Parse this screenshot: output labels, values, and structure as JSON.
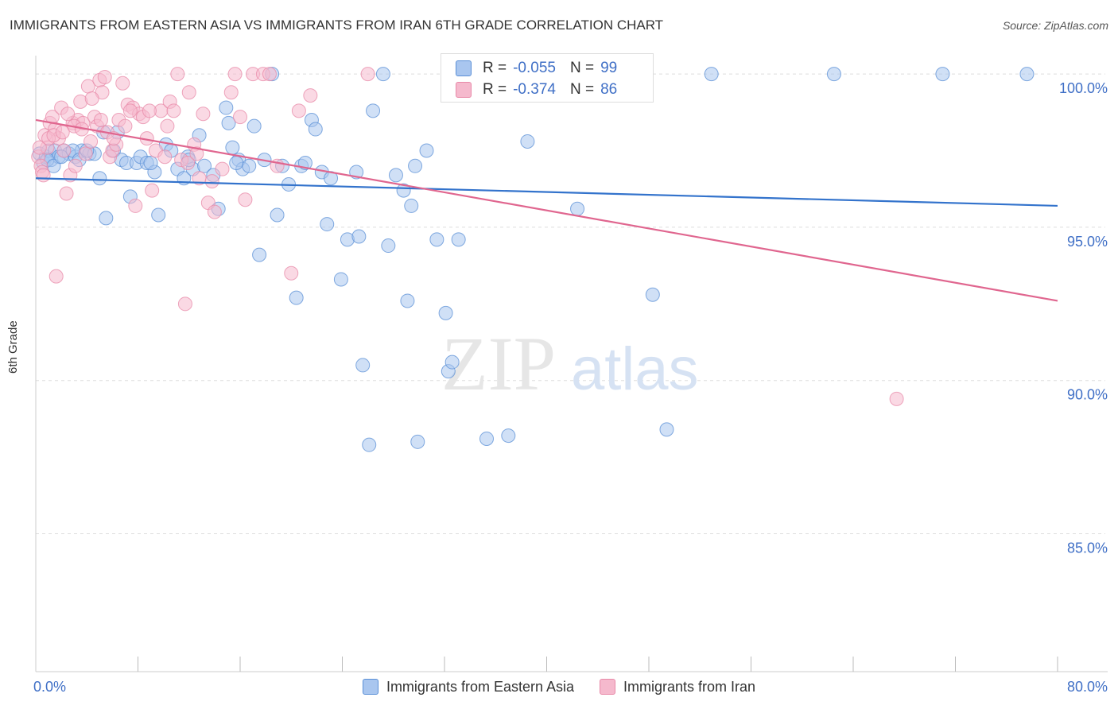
{
  "title": "IMMIGRANTS FROM EASTERN ASIA VS IMMIGRANTS FROM IRAN 6TH GRADE CORRELATION CHART",
  "source": "Source: ZipAtlas.com",
  "watermark": {
    "zip": "ZIP",
    "atlas": "atlas"
  },
  "colors": {
    "blue_fill": "#a9c6ef",
    "blue_stroke": "#5a8fd6",
    "blue_line": "#3373cc",
    "pink_fill": "#f5b9cd",
    "pink_stroke": "#e889a8",
    "pink_line": "#e0668f",
    "tick_text": "#3f6fc6",
    "grid": "#dddddd"
  },
  "stats": {
    "blue": {
      "r_label": "R =",
      "r_value": "-0.055",
      "n_label": "N =",
      "n_value": "99"
    },
    "pink": {
      "r_label": "R =",
      "r_value": "-0.374",
      "n_label": "N =",
      "n_value": "86"
    }
  },
  "legend": {
    "blue_label": "Immigrants from Eastern Asia",
    "pink_label": "Immigrants from Iran"
  },
  "chart_data": {
    "type": "scatter",
    "ylabel": "6th Grade",
    "xlim": [
      0,
      80
    ],
    "ylim": [
      80.5,
      100.6
    ],
    "x_tick_labels": [
      {
        "value": 0,
        "label": "0.0%"
      },
      {
        "value": 80,
        "label": "80.0%"
      }
    ],
    "x_minor_ticks": [
      8,
      16,
      24,
      32,
      40,
      48,
      56,
      64,
      72,
      80
    ],
    "y_ticks": [
      {
        "value": 100,
        "label": "100.0%"
      },
      {
        "value": 95,
        "label": "95.0%"
      },
      {
        "value": 90,
        "label": "90.0%"
      },
      {
        "value": 85,
        "label": "85.0%"
      }
    ],
    "grid": true,
    "series": [
      {
        "name": "Immigrants from Eastern Asia",
        "r": -0.055,
        "n": 99,
        "trend": {
          "x": [
            0,
            80
          ],
          "y": [
            96.6,
            95.7
          ]
        },
        "points": [
          [
            0.3,
            97.4
          ],
          [
            0.6,
            97.1
          ],
          [
            0.8,
            97.3
          ],
          [
            1.0,
            97.5
          ],
          [
            1.2,
            97.2
          ],
          [
            1.5,
            97.5
          ],
          [
            1.8,
            97.3
          ],
          [
            2.2,
            97.5
          ],
          [
            2.6,
            97.4
          ],
          [
            3.1,
            97.3
          ],
          [
            3.6,
            97.5
          ],
          [
            4.2,
            97.4
          ],
          [
            4.6,
            97.4
          ],
          [
            5.0,
            96.6
          ],
          [
            5.3,
            98.1
          ],
          [
            5.5,
            95.3
          ],
          [
            6.1,
            97.5
          ],
          [
            6.4,
            98.1
          ],
          [
            6.7,
            97.2
          ],
          [
            7.1,
            97.1
          ],
          [
            7.4,
            96.0
          ],
          [
            7.9,
            97.1
          ],
          [
            8.2,
            97.3
          ],
          [
            8.7,
            97.1
          ],
          [
            9.3,
            96.8
          ],
          [
            9.6,
            95.4
          ],
          [
            10.2,
            97.7
          ],
          [
            10.6,
            97.5
          ],
          [
            11.1,
            96.9
          ],
          [
            11.6,
            96.6
          ],
          [
            11.9,
            97.3
          ],
          [
            12.3,
            96.9
          ],
          [
            12.8,
            98.0
          ],
          [
            13.2,
            97.0
          ],
          [
            13.9,
            96.7
          ],
          [
            14.3,
            95.6
          ],
          [
            14.9,
            98.9
          ],
          [
            15.1,
            98.4
          ],
          [
            15.4,
            97.6
          ],
          [
            15.9,
            97.2
          ],
          [
            16.2,
            96.9
          ],
          [
            16.7,
            97.0
          ],
          [
            17.1,
            98.3
          ],
          [
            17.5,
            94.1
          ],
          [
            17.9,
            97.2
          ],
          [
            18.5,
            100.0
          ],
          [
            18.9,
            95.4
          ],
          [
            19.3,
            97.0
          ],
          [
            19.8,
            96.4
          ],
          [
            20.4,
            92.7
          ],
          [
            20.8,
            97.0
          ],
          [
            21.1,
            97.1
          ],
          [
            21.6,
            98.5
          ],
          [
            21.9,
            98.2
          ],
          [
            22.4,
            96.8
          ],
          [
            22.8,
            95.1
          ],
          [
            23.1,
            96.6
          ],
          [
            23.9,
            93.3
          ],
          [
            24.4,
            94.6
          ],
          [
            25.1,
            96.8
          ],
          [
            25.3,
            94.7
          ],
          [
            25.6,
            90.5
          ],
          [
            26.1,
            87.9
          ],
          [
            26.4,
            98.8
          ],
          [
            27.2,
            100.0
          ],
          [
            27.6,
            94.4
          ],
          [
            28.2,
            96.7
          ],
          [
            28.8,
            96.2
          ],
          [
            29.1,
            92.6
          ],
          [
            29.4,
            95.7
          ],
          [
            29.7,
            97.0
          ],
          [
            29.9,
            88.0
          ],
          [
            30.6,
            97.5
          ],
          [
            31.4,
            94.6
          ],
          [
            32.1,
            92.2
          ],
          [
            32.3,
            90.3
          ],
          [
            32.6,
            90.6
          ],
          [
            33.1,
            94.6
          ],
          [
            35.3,
            88.1
          ],
          [
            37.0,
            88.2
          ],
          [
            38.5,
            97.8
          ],
          [
            39.6,
            100.0
          ],
          [
            42.4,
            95.6
          ],
          [
            43.0,
            100.0
          ],
          [
            48.3,
            92.8
          ],
          [
            49.4,
            88.4
          ],
          [
            52.9,
            100.0
          ],
          [
            62.5,
            100.0
          ],
          [
            71.0,
            100.0
          ],
          [
            77.6,
            100.0
          ],
          [
            0.9,
            97.2
          ],
          [
            1.4,
            97.0
          ],
          [
            2.0,
            97.3
          ],
          [
            2.9,
            97.5
          ],
          [
            3.4,
            97.2
          ],
          [
            4.0,
            97.5
          ],
          [
            9.0,
            97.1
          ],
          [
            12.0,
            97.2
          ],
          [
            15.7,
            97.1
          ]
        ]
      },
      {
        "name": "Immigrants from Iran",
        "r": -0.374,
        "n": 86,
        "trend": {
          "x": [
            0,
            80
          ],
          "y": [
            98.5,
            92.6
          ]
        },
        "points": [
          [
            0.2,
            97.3
          ],
          [
            0.4,
            97.0
          ],
          [
            0.5,
            96.8
          ],
          [
            0.7,
            98.0
          ],
          [
            0.9,
            97.6
          ],
          [
            1.1,
            98.4
          ],
          [
            1.3,
            98.6
          ],
          [
            1.5,
            98.2
          ],
          [
            1.6,
            93.4
          ],
          [
            1.8,
            97.9
          ],
          [
            2.0,
            98.9
          ],
          [
            2.2,
            97.5
          ],
          [
            2.4,
            96.1
          ],
          [
            2.7,
            96.7
          ],
          [
            2.9,
            98.4
          ],
          [
            3.1,
            97.0
          ],
          [
            3.3,
            98.5
          ],
          [
            3.5,
            99.1
          ],
          [
            3.7,
            98.4
          ],
          [
            3.9,
            97.4
          ],
          [
            4.1,
            99.6
          ],
          [
            4.3,
            97.8
          ],
          [
            4.6,
            98.6
          ],
          [
            4.8,
            98.3
          ],
          [
            5.0,
            99.8
          ],
          [
            5.2,
            99.4
          ],
          [
            5.4,
            99.9
          ],
          [
            5.6,
            98.1
          ],
          [
            5.8,
            97.3
          ],
          [
            6.0,
            97.5
          ],
          [
            6.3,
            97.7
          ],
          [
            6.5,
            98.5
          ],
          [
            6.8,
            99.7
          ],
          [
            7.0,
            98.3
          ],
          [
            7.2,
            99.0
          ],
          [
            7.6,
            98.9
          ],
          [
            7.8,
            95.7
          ],
          [
            8.1,
            98.7
          ],
          [
            8.4,
            98.6
          ],
          [
            8.7,
            97.9
          ],
          [
            9.1,
            96.2
          ],
          [
            9.4,
            97.5
          ],
          [
            9.8,
            98.8
          ],
          [
            10.1,
            97.3
          ],
          [
            10.5,
            99.1
          ],
          [
            10.8,
            98.8
          ],
          [
            11.1,
            100.0
          ],
          [
            11.4,
            97.2
          ],
          [
            11.7,
            92.5
          ],
          [
            12.0,
            99.4
          ],
          [
            12.4,
            97.7
          ],
          [
            12.8,
            96.6
          ],
          [
            13.1,
            98.7
          ],
          [
            13.5,
            95.8
          ],
          [
            14.0,
            95.5
          ],
          [
            14.6,
            96.9
          ],
          [
            15.3,
            99.4
          ],
          [
            15.6,
            100.0
          ],
          [
            16.0,
            98.6
          ],
          [
            16.4,
            95.9
          ],
          [
            17.0,
            100.0
          ],
          [
            17.8,
            100.0
          ],
          [
            18.3,
            100.0
          ],
          [
            18.9,
            97.0
          ],
          [
            20.0,
            93.5
          ],
          [
            20.6,
            98.8
          ],
          [
            21.5,
            99.3
          ],
          [
            26.0,
            100.0
          ],
          [
            67.4,
            89.4
          ],
          [
            0.3,
            97.6
          ],
          [
            0.6,
            96.7
          ],
          [
            1.0,
            97.9
          ],
          [
            1.4,
            98.0
          ],
          [
            2.1,
            98.1
          ],
          [
            2.5,
            98.7
          ],
          [
            3.0,
            98.3
          ],
          [
            3.6,
            98.2
          ],
          [
            4.4,
            99.2
          ],
          [
            5.1,
            98.5
          ],
          [
            6.1,
            97.9
          ],
          [
            7.4,
            98.8
          ],
          [
            8.9,
            98.8
          ],
          [
            10.3,
            98.3
          ],
          [
            11.9,
            97.1
          ],
          [
            13.8,
            96.5
          ],
          [
            12.6,
            97.4
          ]
        ]
      }
    ]
  }
}
